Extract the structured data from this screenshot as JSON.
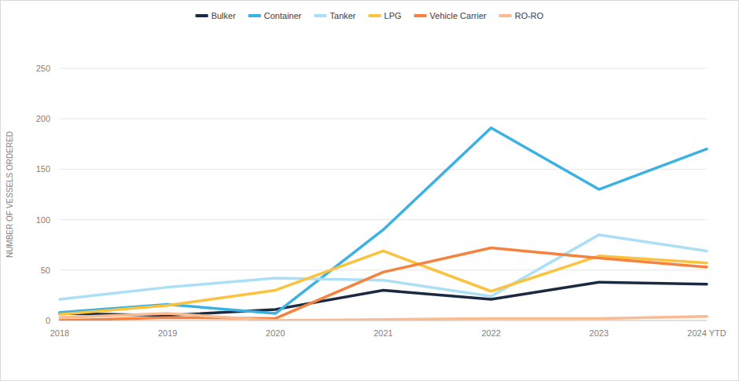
{
  "chart_data": {
    "type": "line",
    "y_label": "NUMBER OF VESSELS ORDERED",
    "categories": [
      "2018",
      "2019",
      "2020",
      "2021",
      "2022",
      "2023",
      "2024 YTD"
    ],
    "series": [
      {
        "name": "Bulker",
        "color": "#1b2a41",
        "values": [
          7,
          5,
          11,
          30,
          21,
          38,
          36
        ]
      },
      {
        "name": "Container",
        "color": "#3cb1e3",
        "values": [
          8,
          16,
          7,
          90,
          191,
          130,
          170
        ]
      },
      {
        "name": "Tanker",
        "color": "#aadff5",
        "values": [
          21,
          33,
          42,
          40,
          24,
          85,
          69
        ]
      },
      {
        "name": "LPG",
        "color": "#fbc33d",
        "values": [
          6,
          15,
          30,
          69,
          29,
          64,
          57
        ]
      },
      {
        "name": "Vehicle Carrier",
        "color": "#f5823f",
        "values": [
          0,
          3,
          2,
          48,
          72,
          62,
          53
        ]
      },
      {
        "name": "RO-RO",
        "color": "#f8bb92",
        "values": [
          3,
          7,
          0,
          1,
          2,
          2,
          4
        ]
      }
    ],
    "ylim": [
      0,
      250
    ],
    "yticks": [
      0,
      50,
      100,
      150,
      200,
      250
    ],
    "grid": true,
    "legend": "top"
  }
}
